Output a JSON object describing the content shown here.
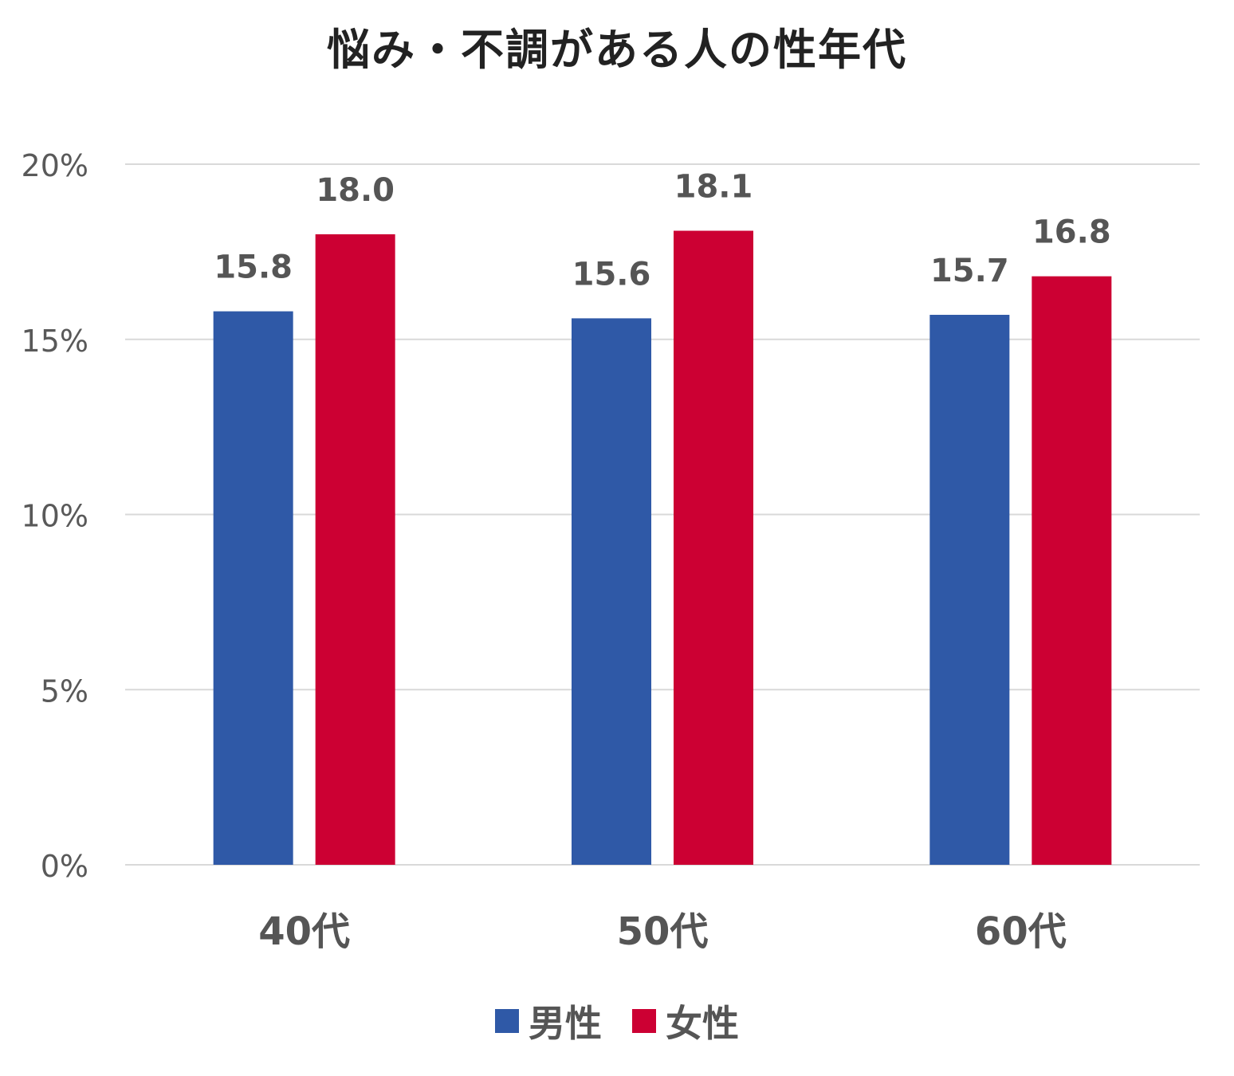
{
  "chart_data": {
    "type": "bar",
    "title": "悩み・不調がある人の性年代",
    "xlabel": "",
    "ylabel": "",
    "categories": [
      "40代",
      "50代",
      "60代"
    ],
    "series": [
      {
        "name": "男性",
        "values": [
          15.8,
          15.6,
          15.7
        ],
        "labels": [
          "15.8",
          "15.6",
          "15.7"
        ],
        "color": "#2f59a7"
      },
      {
        "name": "女性",
        "values": [
          18.0,
          18.1,
          16.8
        ],
        "labels": [
          "18.0",
          "18.1",
          "16.8"
        ],
        "color": "#cc0033"
      }
    ],
    "ylim": [
      0,
      20
    ],
    "yticks": [
      0,
      5,
      10,
      15,
      20
    ],
    "ytick_labels": [
      "0%",
      "5%",
      "10%",
      "15%",
      "20%"
    ],
    "grid": true,
    "legend_position": "bottom",
    "gridline_color": "#d9d9d9",
    "tick_label_color": "#595959"
  }
}
